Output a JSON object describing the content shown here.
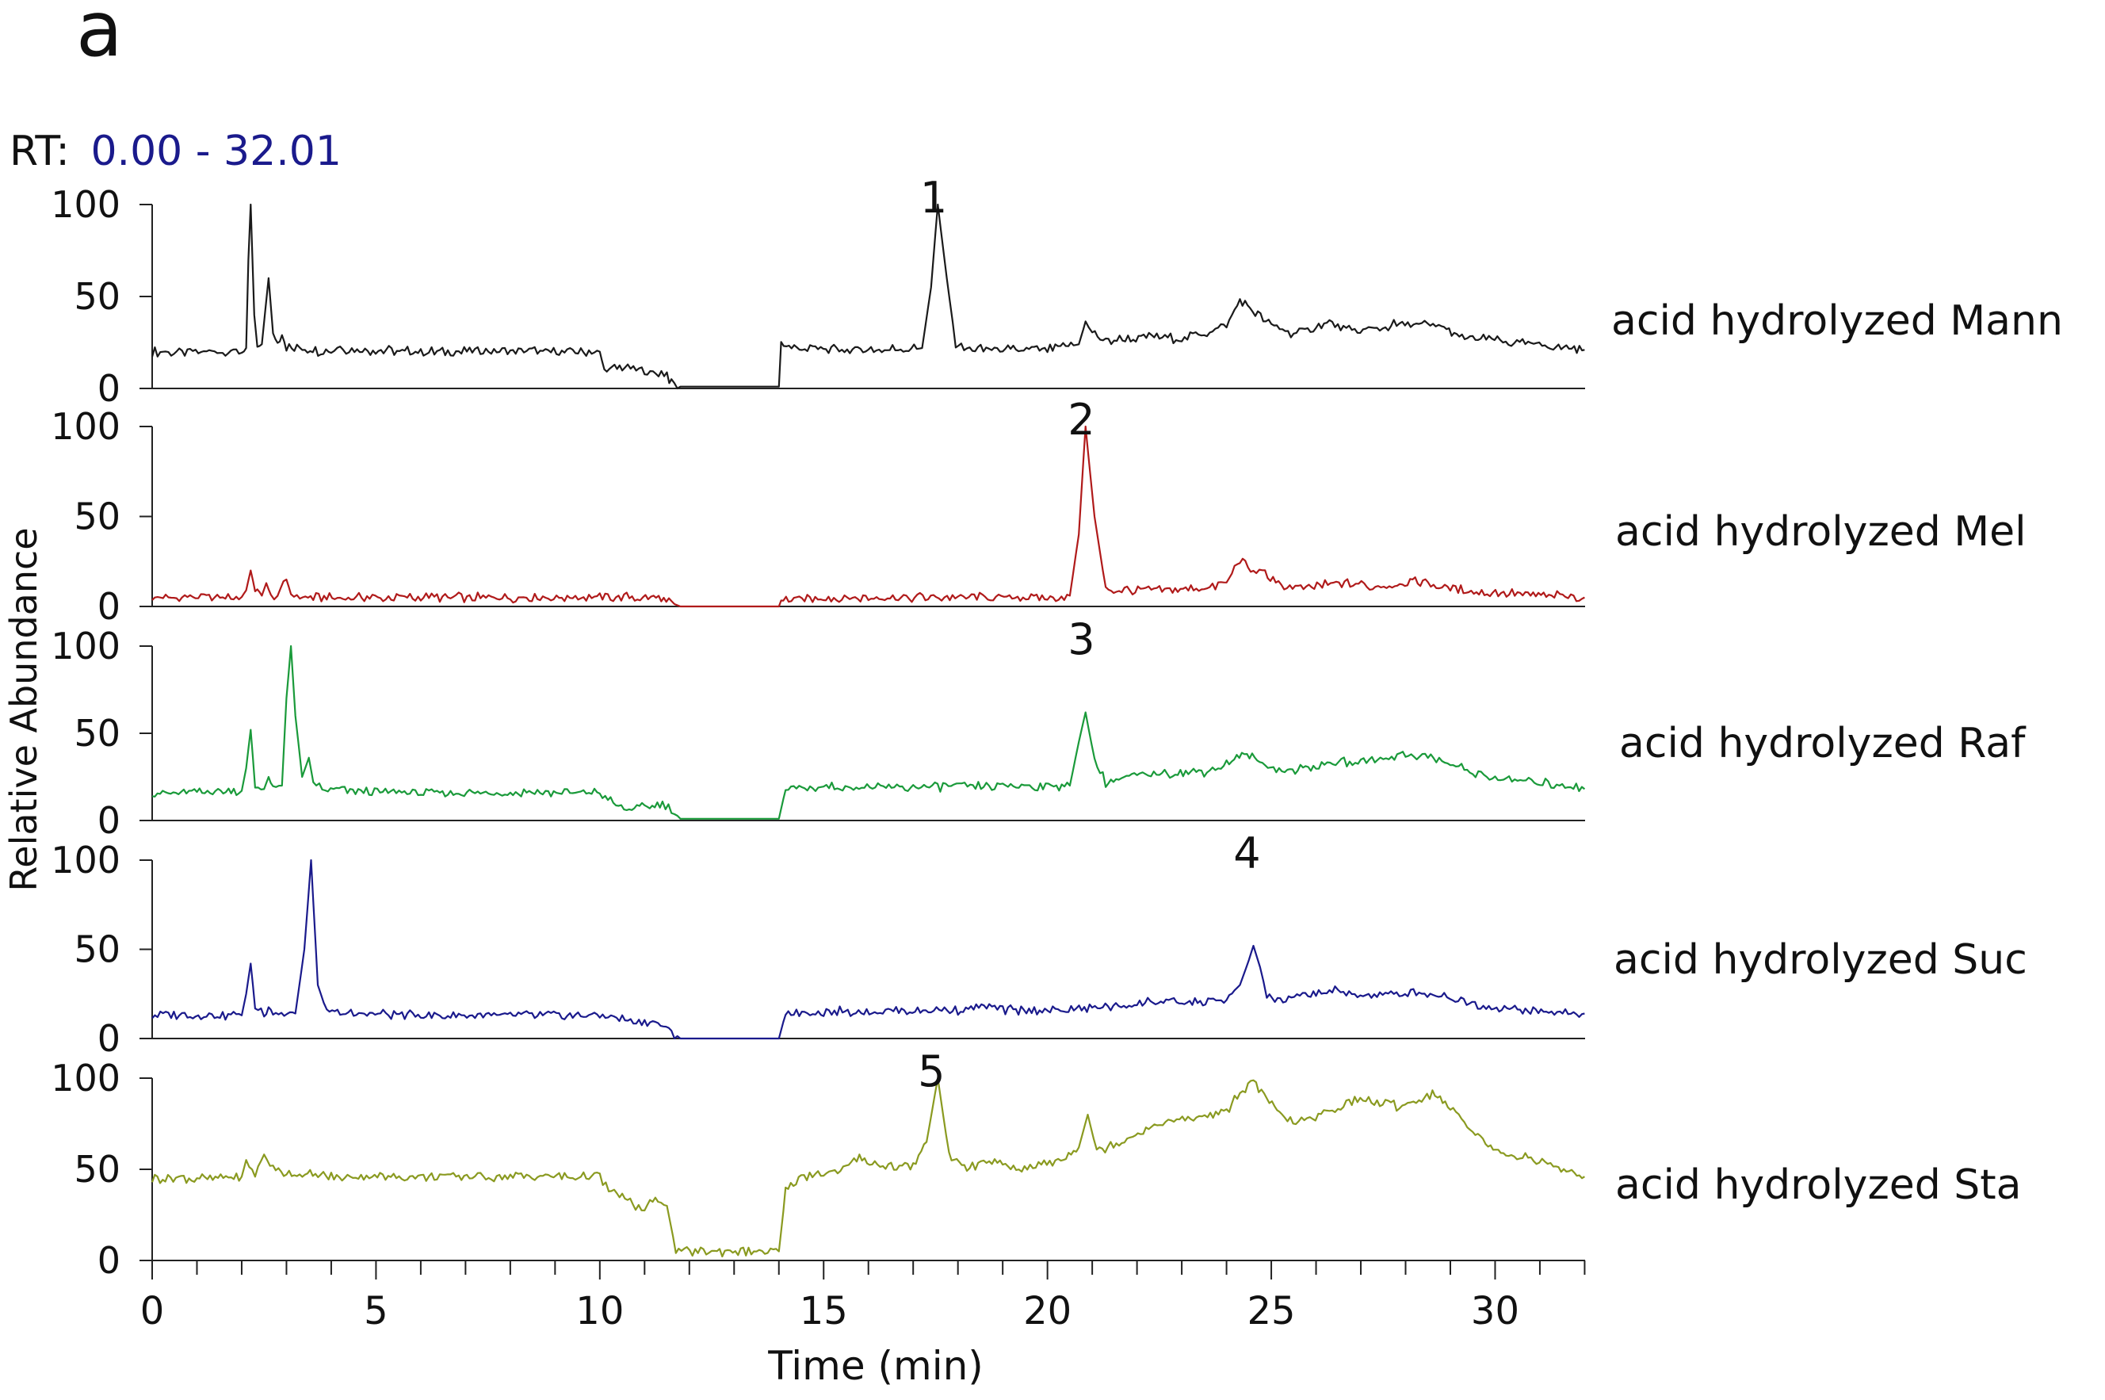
{
  "panel_letter": "a",
  "rt_range": {
    "prefix": "RT:",
    "value": "0.00 - 32.01",
    "value_color": "#1a1a8c"
  },
  "chart_data": {
    "type": "line",
    "xlabel": "Time (min)",
    "ylabel": "Relative Abundance",
    "xlim": [
      0,
      32.01
    ],
    "ylim": [
      0,
      100
    ],
    "x_ticks": [
      0,
      5,
      10,
      15,
      20,
      25,
      30
    ],
    "y_ticks": [
      0,
      50,
      100
    ],
    "grid": false,
    "series": [
      {
        "name": "acid hydrolyzed Mann",
        "color": "#1a1a1a",
        "peak_label": "1",
        "peak_x": 17.6,
        "points": [
          [
            0,
            20
          ],
          [
            2.0,
            20
          ],
          [
            2.1,
            22
          ],
          [
            2.15,
            70
          ],
          [
            2.2,
            100
          ],
          [
            2.28,
            40
          ],
          [
            2.35,
            22
          ],
          [
            2.45,
            24
          ],
          [
            2.6,
            60
          ],
          [
            2.7,
            30
          ],
          [
            2.8,
            24
          ],
          [
            2.9,
            29
          ],
          [
            3.0,
            22
          ],
          [
            4.0,
            20
          ],
          [
            4.2,
            23
          ],
          [
            4.4,
            21
          ],
          [
            6,
            20
          ],
          [
            8,
            20
          ],
          [
            10.0,
            20
          ],
          [
            10.1,
            10
          ],
          [
            10.5,
            12
          ],
          [
            11.0,
            9
          ],
          [
            11.5,
            8
          ],
          [
            11.6,
            3
          ],
          [
            11.8,
            1
          ],
          [
            13.0,
            1
          ],
          [
            14.0,
            1
          ],
          [
            14.05,
            25
          ],
          [
            14.4,
            22
          ],
          [
            16,
            21
          ],
          [
            17.2,
            22
          ],
          [
            17.4,
            55
          ],
          [
            17.55,
            100
          ],
          [
            17.75,
            60
          ],
          [
            17.95,
            24
          ],
          [
            18.2,
            21
          ],
          [
            19,
            21
          ],
          [
            20,
            21
          ],
          [
            20.7,
            24
          ],
          [
            20.85,
            36
          ],
          [
            21.0,
            30
          ],
          [
            21.3,
            26
          ],
          [
            21.8,
            27
          ],
          [
            22.5,
            28
          ],
          [
            23.0,
            27
          ],
          [
            23.5,
            30
          ],
          [
            24.0,
            34
          ],
          [
            24.3,
            48
          ],
          [
            24.7,
            40
          ],
          [
            25.0,
            34
          ],
          [
            25.5,
            30
          ],
          [
            26.0,
            33
          ],
          [
            26.3,
            36
          ],
          [
            26.8,
            31
          ],
          [
            27.3,
            32
          ],
          [
            27.8,
            35
          ],
          [
            28.3,
            35
          ],
          [
            28.8,
            34
          ],
          [
            29.2,
            28
          ],
          [
            29.8,
            27
          ],
          [
            30.3,
            25
          ],
          [
            30.8,
            24
          ],
          [
            31.3,
            23
          ],
          [
            32.0,
            21
          ]
        ]
      },
      {
        "name": "acid hydrolyzed Mel",
        "color": "#b01a1a",
        "peak_label": "2",
        "peak_x": 20.9,
        "points": [
          [
            0,
            5
          ],
          [
            2.0,
            5
          ],
          [
            2.1,
            9
          ],
          [
            2.2,
            20
          ],
          [
            2.3,
            9
          ],
          [
            2.45,
            6
          ],
          [
            2.55,
            13
          ],
          [
            2.65,
            6
          ],
          [
            2.8,
            6
          ],
          [
            3.0,
            15
          ],
          [
            3.1,
            7
          ],
          [
            3.3,
            5
          ],
          [
            6,
            5
          ],
          [
            8,
            5
          ],
          [
            10,
            5
          ],
          [
            11.2,
            5
          ],
          [
            11.6,
            2
          ],
          [
            11.8,
            0
          ],
          [
            13.5,
            0
          ],
          [
            14.0,
            0
          ],
          [
            14.1,
            4
          ],
          [
            16,
            5
          ],
          [
            18,
            5
          ],
          [
            20,
            5
          ],
          [
            20.5,
            6
          ],
          [
            20.7,
            40
          ],
          [
            20.85,
            100
          ],
          [
            21.05,
            50
          ],
          [
            21.3,
            10
          ],
          [
            21.6,
            9
          ],
          [
            22.5,
            9
          ],
          [
            23.5,
            10
          ],
          [
            24.0,
            13
          ],
          [
            24.3,
            26
          ],
          [
            24.6,
            18
          ],
          [
            24.8,
            21
          ],
          [
            25.1,
            12
          ],
          [
            25.6,
            10
          ],
          [
            26.2,
            12
          ],
          [
            26.7,
            13
          ],
          [
            27.2,
            11
          ],
          [
            27.7,
            12
          ],
          [
            28.1,
            14
          ],
          [
            28.5,
            13
          ],
          [
            29.0,
            10
          ],
          [
            29.7,
            8
          ],
          [
            30.5,
            7
          ],
          [
            31.2,
            6
          ],
          [
            32.0,
            5
          ]
        ]
      },
      {
        "name": "acid hydrolyzed Raf",
        "color": "#1a9a3a",
        "peak_label": "3",
        "peak_x": 20.9,
        "points": [
          [
            0,
            15
          ],
          [
            1.0,
            16
          ],
          [
            2.0,
            17
          ],
          [
            2.1,
            30
          ],
          [
            2.2,
            52
          ],
          [
            2.3,
            20
          ],
          [
            2.5,
            18
          ],
          [
            2.6,
            25
          ],
          [
            2.7,
            18
          ],
          [
            2.9,
            20
          ],
          [
            3.0,
            70
          ],
          [
            3.1,
            100
          ],
          [
            3.2,
            60
          ],
          [
            3.35,
            25
          ],
          [
            3.5,
            36
          ],
          [
            3.6,
            22
          ],
          [
            3.8,
            18
          ],
          [
            4.3,
            17
          ],
          [
            6,
            16
          ],
          [
            8,
            16
          ],
          [
            10.0,
            16
          ],
          [
            10.3,
            10
          ],
          [
            10.6,
            6
          ],
          [
            11.0,
            8
          ],
          [
            11.4,
            10
          ],
          [
            11.6,
            6
          ],
          [
            11.8,
            1
          ],
          [
            13,
            1
          ],
          [
            14.0,
            1
          ],
          [
            14.15,
            18
          ],
          [
            15,
            19
          ],
          [
            17,
            19
          ],
          [
            19,
            20
          ],
          [
            20.5,
            20
          ],
          [
            20.7,
            45
          ],
          [
            20.85,
            62
          ],
          [
            21.05,
            35
          ],
          [
            21.3,
            22
          ],
          [
            22,
            26
          ],
          [
            22.5,
            27
          ],
          [
            23.5,
            28
          ],
          [
            24.0,
            32
          ],
          [
            24.4,
            38
          ],
          [
            24.8,
            33
          ],
          [
            25.3,
            28
          ],
          [
            26.0,
            31
          ],
          [
            26.5,
            34
          ],
          [
            27.0,
            33
          ],
          [
            27.5,
            36
          ],
          [
            28.0,
            38
          ],
          [
            28.5,
            37
          ],
          [
            29.0,
            32
          ],
          [
            29.5,
            28
          ],
          [
            30.0,
            24
          ],
          [
            30.5,
            23
          ],
          [
            31.0,
            22
          ],
          [
            31.5,
            20
          ],
          [
            32.0,
            18
          ]
        ]
      },
      {
        "name": "acid hydrolyzed Suc",
        "color": "#1a1a8c",
        "peak_label": "4",
        "peak_x": 24.6,
        "points": [
          [
            0,
            13
          ],
          [
            2.0,
            13
          ],
          [
            2.1,
            25
          ],
          [
            2.2,
            42
          ],
          [
            2.3,
            18
          ],
          [
            2.5,
            14
          ],
          [
            2.6,
            18
          ],
          [
            2.7,
            14
          ],
          [
            3.2,
            14
          ],
          [
            3.4,
            50
          ],
          [
            3.55,
            100
          ],
          [
            3.7,
            30
          ],
          [
            3.9,
            15
          ],
          [
            4.5,
            14
          ],
          [
            6,
            13
          ],
          [
            8,
            13
          ],
          [
            10.0,
            13
          ],
          [
            10.5,
            11
          ],
          [
            11.0,
            9
          ],
          [
            11.3,
            9
          ],
          [
            11.6,
            4
          ],
          [
            11.8,
            0
          ],
          [
            13,
            0
          ],
          [
            14.0,
            0
          ],
          [
            14.15,
            14
          ],
          [
            15,
            15
          ],
          [
            18,
            16
          ],
          [
            18.7,
            18
          ],
          [
            19,
            16
          ],
          [
            20,
            16
          ],
          [
            21,
            17
          ],
          [
            22,
            19
          ],
          [
            22.3,
            21
          ],
          [
            23,
            20
          ],
          [
            24,
            21
          ],
          [
            24.3,
            30
          ],
          [
            24.5,
            44
          ],
          [
            24.6,
            52
          ],
          [
            24.75,
            40
          ],
          [
            24.9,
            24
          ],
          [
            25.2,
            21
          ],
          [
            25.7,
            24
          ],
          [
            26.3,
            27
          ],
          [
            26.8,
            25
          ],
          [
            27.3,
            24
          ],
          [
            27.8,
            25
          ],
          [
            28.3,
            26
          ],
          [
            28.8,
            24
          ],
          [
            29.3,
            21
          ],
          [
            29.8,
            18
          ],
          [
            30.5,
            16
          ],
          [
            31.2,
            15
          ],
          [
            32.0,
            14
          ]
        ]
      },
      {
        "name": "acid hydrolyzed Sta",
        "color": "#8a9a20",
        "peak_label": "5",
        "peak_x": 17.55,
        "points": [
          [
            0,
            45
          ],
          [
            1,
            45
          ],
          [
            2.0,
            46
          ],
          [
            2.1,
            55
          ],
          [
            2.3,
            48
          ],
          [
            2.5,
            58
          ],
          [
            2.7,
            50
          ],
          [
            3.0,
            48
          ],
          [
            4,
            46
          ],
          [
            6,
            46
          ],
          [
            8,
            46
          ],
          [
            10.0,
            46
          ],
          [
            10.2,
            38
          ],
          [
            10.5,
            35
          ],
          [
            10.8,
            30
          ],
          [
            11.0,
            28
          ],
          [
            11.3,
            34
          ],
          [
            11.5,
            30
          ],
          [
            11.7,
            5
          ],
          [
            12.5,
            5
          ],
          [
            13.5,
            5
          ],
          [
            14.0,
            5
          ],
          [
            14.15,
            38
          ],
          [
            14.5,
            46
          ],
          [
            15.0,
            48
          ],
          [
            15.5,
            50
          ],
          [
            15.8,
            57
          ],
          [
            16.2,
            52
          ],
          [
            17.0,
            52
          ],
          [
            17.3,
            65
          ],
          [
            17.55,
            100
          ],
          [
            17.8,
            58
          ],
          [
            18.2,
            50
          ],
          [
            18.7,
            55
          ],
          [
            19.3,
            50
          ],
          [
            19.8,
            52
          ],
          [
            20.3,
            55
          ],
          [
            20.7,
            62
          ],
          [
            20.9,
            80
          ],
          [
            21.1,
            60
          ],
          [
            21.6,
            65
          ],
          [
            22.2,
            72
          ],
          [
            22.7,
            76
          ],
          [
            23.2,
            78
          ],
          [
            23.7,
            80
          ],
          [
            24.0,
            82
          ],
          [
            24.3,
            92
          ],
          [
            24.6,
            98
          ],
          [
            24.9,
            88
          ],
          [
            25.3,
            78
          ],
          [
            25.8,
            76
          ],
          [
            26.3,
            82
          ],
          [
            26.8,
            88
          ],
          [
            27.3,
            87
          ],
          [
            27.8,
            85
          ],
          [
            28.3,
            88
          ],
          [
            28.6,
            92
          ],
          [
            29.0,
            84
          ],
          [
            29.5,
            72
          ],
          [
            29.9,
            62
          ],
          [
            30.3,
            58
          ],
          [
            30.8,
            56
          ],
          [
            31.3,
            52
          ],
          [
            32.0,
            46
          ]
        ]
      }
    ]
  }
}
